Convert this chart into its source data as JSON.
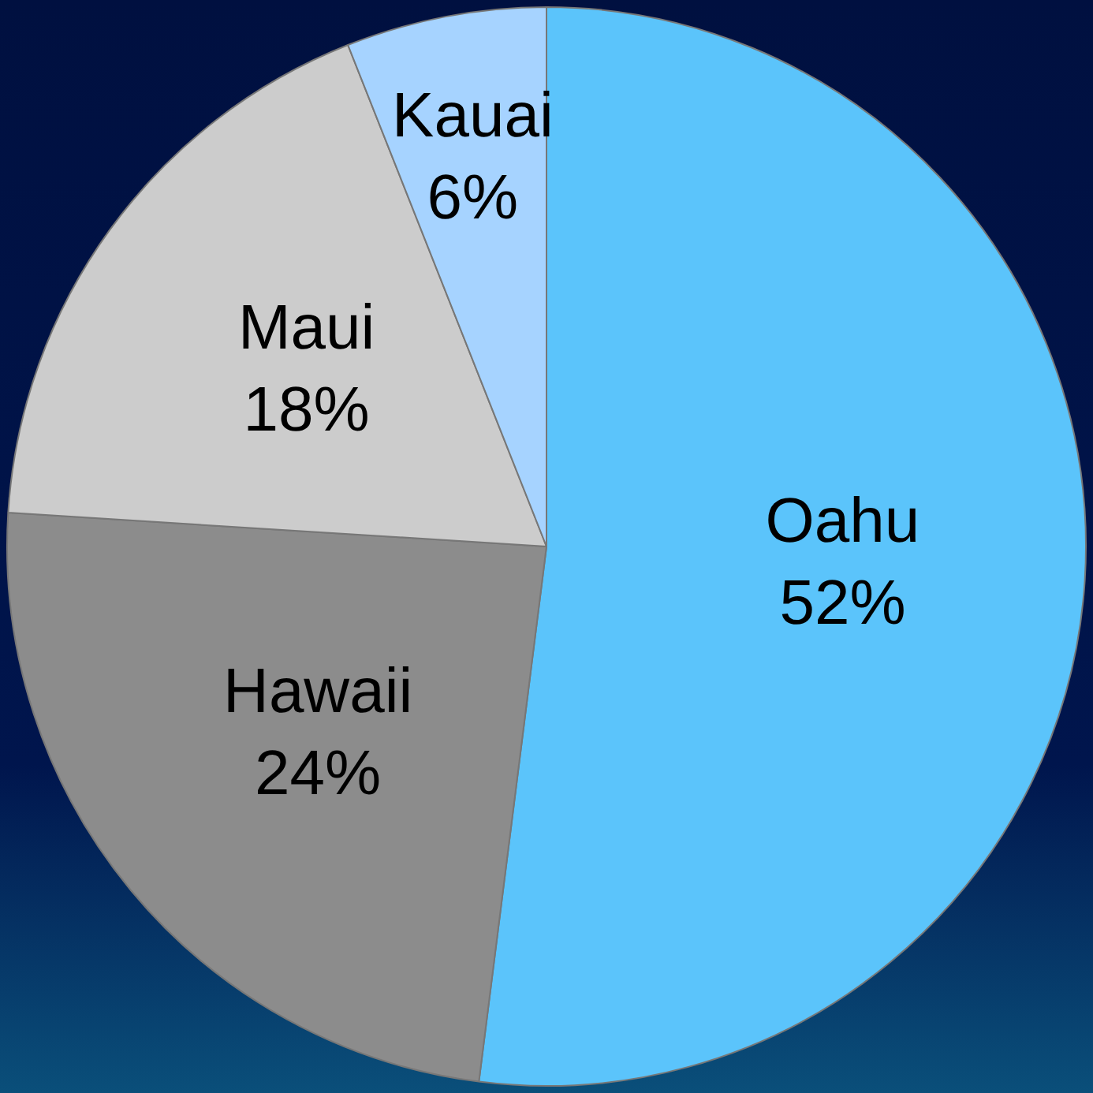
{
  "chart_data": {
    "type": "pie",
    "categories": [
      "Oahu",
      "Hawaii",
      "Maui",
      "Kauai"
    ],
    "values": [
      52,
      24,
      18,
      6
    ],
    "colors": [
      "#5bc4fb",
      "#8c8c8c",
      "#cccccc",
      "#a6d3ff"
    ],
    "value_labels": [
      "52%",
      "24%",
      "18%",
      "6%"
    ],
    "legend": false
  }
}
